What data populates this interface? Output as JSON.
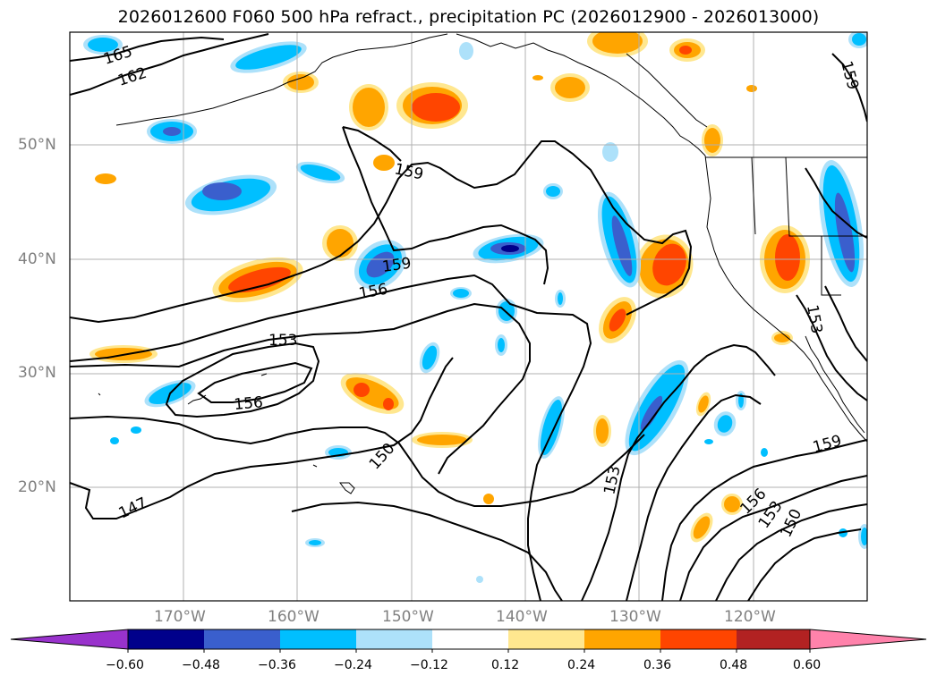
{
  "title": "2026012600 F060 500 hPa refract., precipitation PC (2026012900 - 2026013000)",
  "lat_labels": [
    "50°N",
    "40°N",
    "30°N",
    "20°N"
  ],
  "lon_labels": [
    "170°W",
    "160°W",
    "150°W",
    "140°W",
    "130°W",
    "120°W"
  ],
  "contour_labels": [
    "165",
    "162",
    "159",
    "159",
    "156",
    "153",
    "156",
    "150",
    "147",
    "153",
    "159",
    "156",
    "153",
    "150",
    "153",
    "159"
  ],
  "colorbar": {
    "ticks": [
      "−0.60",
      "−0.48",
      "−0.36",
      "−0.24",
      "−0.12",
      "0.12",
      "0.24",
      "0.36",
      "0.48",
      "0.60"
    ],
    "colors": [
      "#9932CC",
      "#00008B",
      "#3A5FCD",
      "#00BFFF",
      "#ADE1FA",
      "#FFFFFF",
      "#FFE78F",
      "#FFA500",
      "#FF4500",
      "#B22222",
      "#FF82AB"
    ]
  },
  "palette": {
    "dark_blue": "#00008B",
    "blue": "#3A5FCD",
    "cyan": "#00BFFF",
    "light_blue": "#ADE1FA",
    "light_yellow": "#FFE78F",
    "orange": "#FFA500",
    "red_orange": "#FF4500"
  }
}
